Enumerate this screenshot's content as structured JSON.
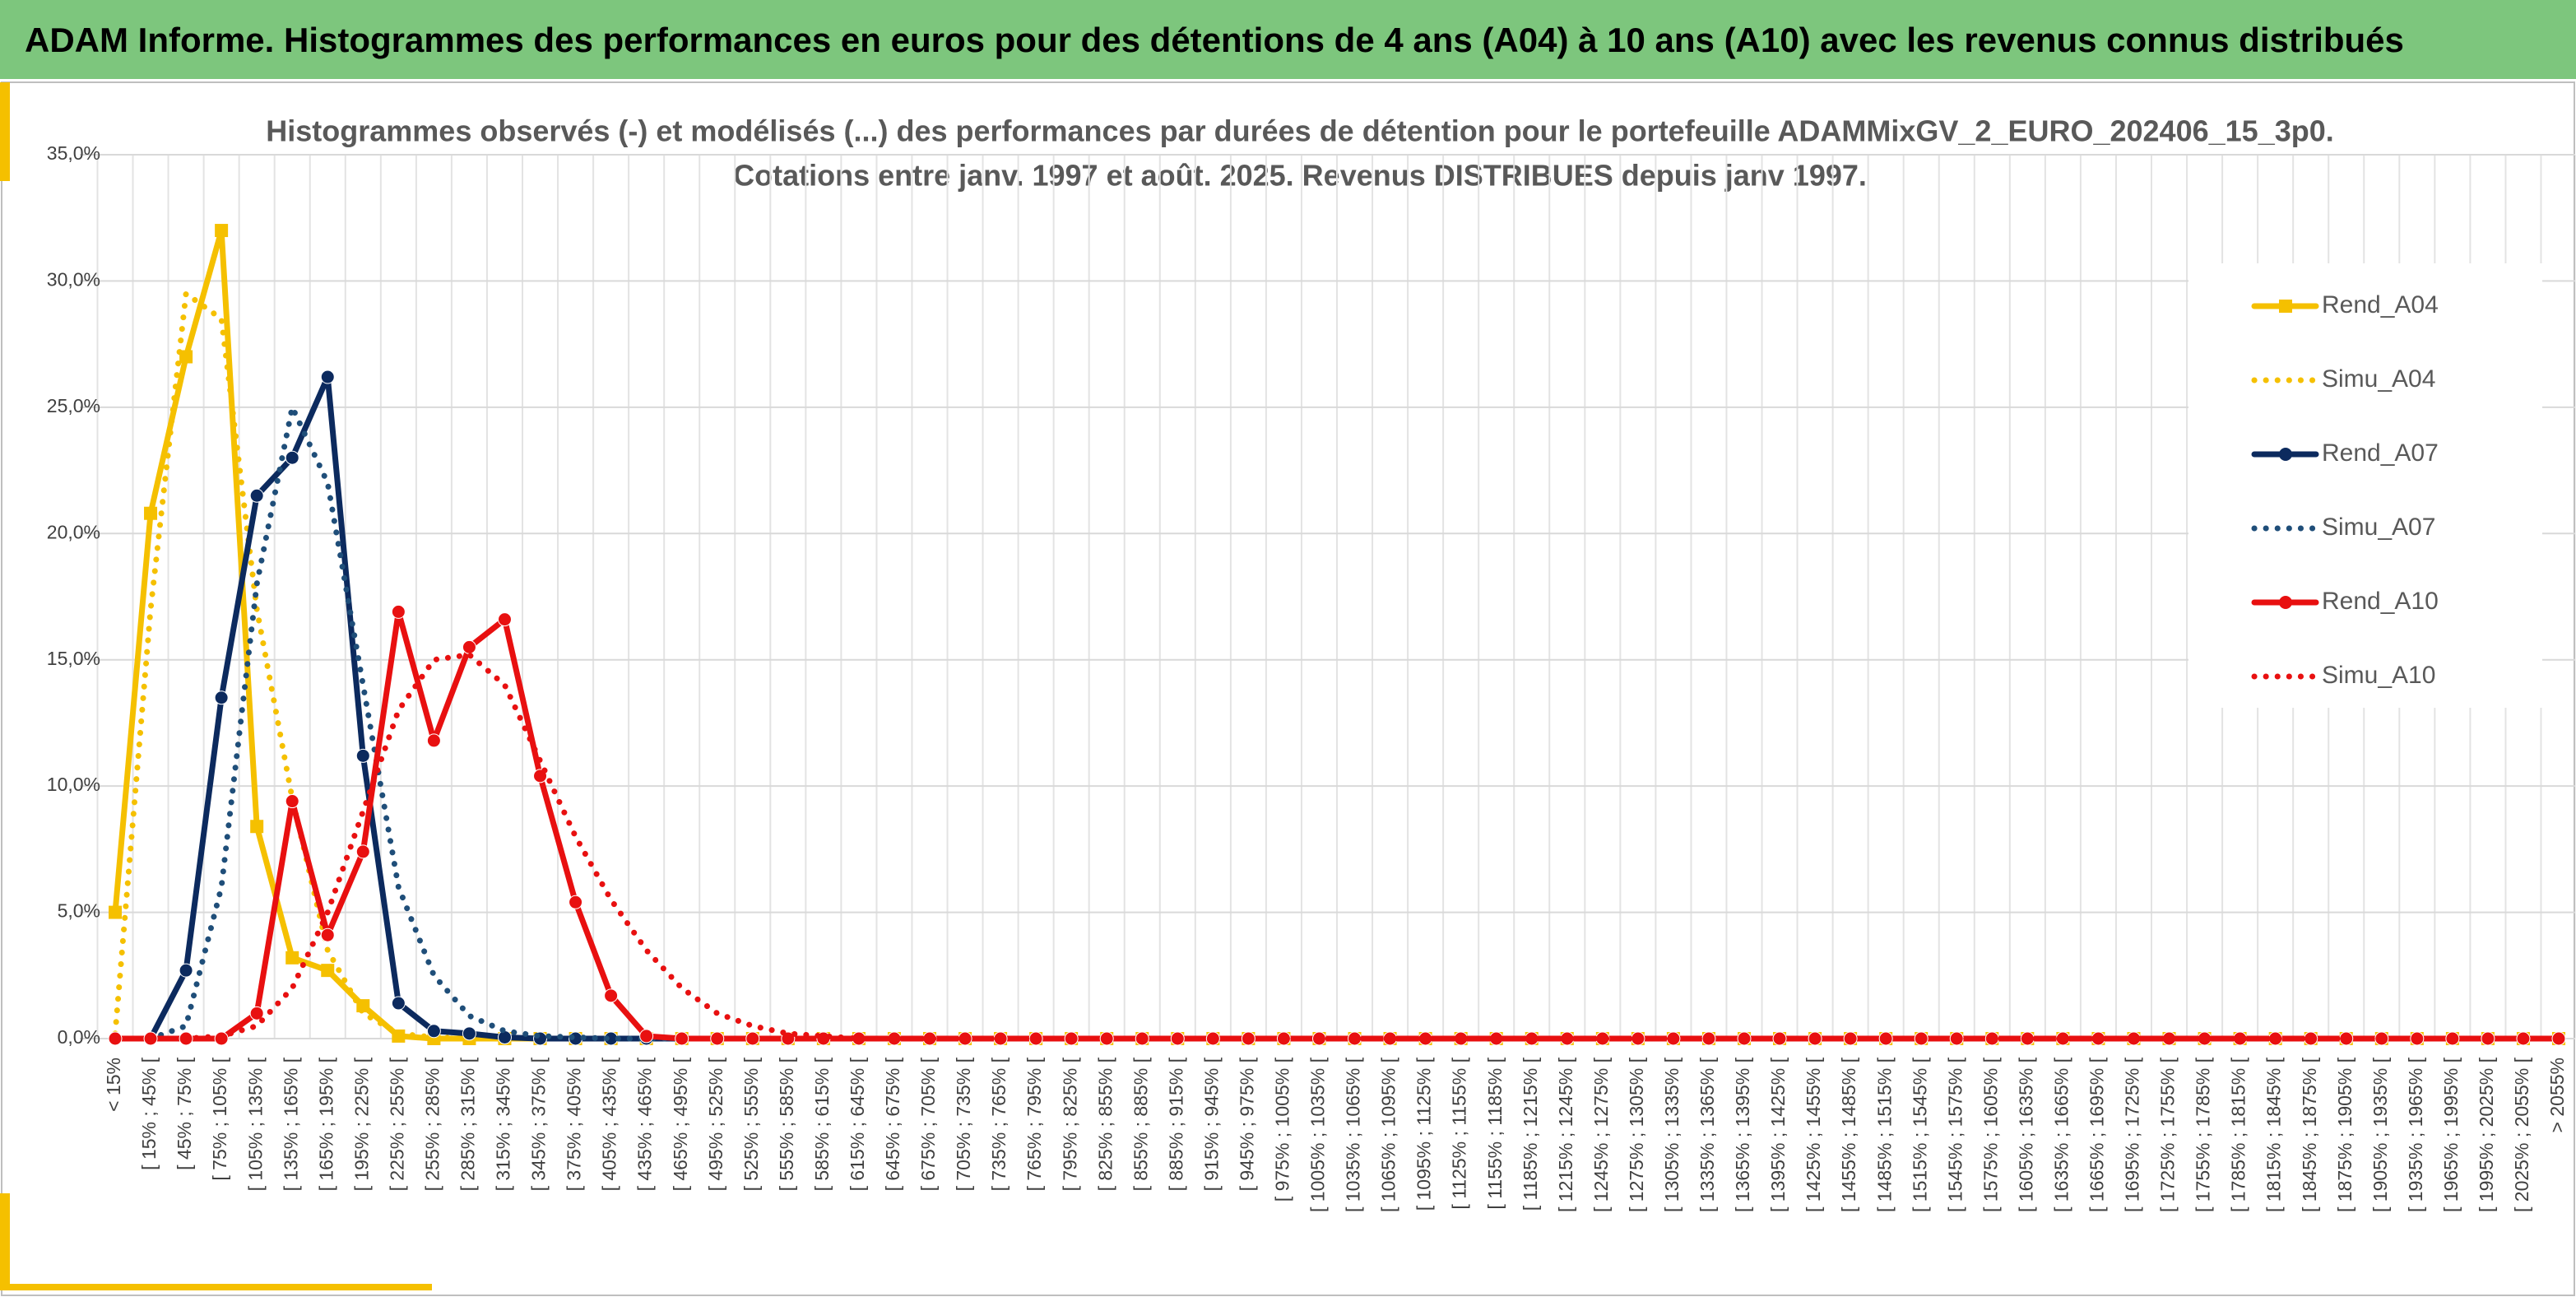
{
  "header": {
    "title": "ADAM Informe. Histogrammes des performances en euros pour des détentions de 4 ans (A04) à 10 ans (A10) avec les revenus connus distribués"
  },
  "chart_data": {
    "type": "line",
    "title": "Histogrammes observés (-) et modélisés (...) des performances par durées de détention pour le portefeuille ADAMMixGV_2_EURO_202406_15_3p0.",
    "subtitle": "Cotations entre janv. 1997 et août. 2025. Revenus DISTRIBUES depuis janv 1997.",
    "categories": [
      "< 15%",
      "[ 15% ; 45% [",
      "[ 45% ; 75% [",
      "[ 75% ; 105% [",
      "[ 105% ; 135% [",
      "[ 135% ; 165% [",
      "[ 165% ; 195% [",
      "[ 195% ; 225% [",
      "[ 225% ; 255% [",
      "[ 255% ; 285% [",
      "[ 285% ; 315% [",
      "[ 315% ; 345% [",
      "[ 345% ; 375% [",
      "[ 375% ; 405% [",
      "[ 405% ; 435% [",
      "[ 435% ; 465% [",
      "[ 465% ; 495% [",
      "[ 495% ; 525% [",
      "[ 525% ; 555% [",
      "[ 555% ; 585% [",
      "[ 585% ; 615% [",
      "[ 615% ; 645% [",
      "[ 645% ; 675% [",
      "[ 675% ; 705% [",
      "[ 705% ; 735% [",
      "[ 735% ; 765% [",
      "[ 765% ; 795% [",
      "[ 795% ; 825% [",
      "[ 825% ; 855% [",
      "[ 855% ; 885% [",
      "[ 885% ; 915% [",
      "[ 915% ; 945% [",
      "[ 945% ; 975% [",
      "[ 975% ; 1005% [",
      "[ 1005% ; 1035% [",
      "[ 1035% ; 1065% [",
      "[ 1065% ; 1095% [",
      "[ 1095% ; 1125% [",
      "[ 1125% ; 1155% [",
      "[ 1155% ; 1185% [",
      "[ 1185% ; 1215% [",
      "[ 1215% ; 1245% [",
      "[ 1245% ; 1275% [",
      "[ 1275% ; 1305% [",
      "[ 1305% ; 1335% [",
      "[ 1335% ; 1365% [",
      "[ 1365% ; 1395% [",
      "[ 1395% ; 1425% [",
      "[ 1425% ; 1455% [",
      "[ 1455% ; 1485% [",
      "[ 1485% ; 1515% [",
      "[ 1515% ; 1545% [",
      "[ 1545% ; 1575% [",
      "[ 1575% ; 1605% [",
      "[ 1605% ; 1635% [",
      "[ 1635% ; 1665% [",
      "[ 1665% ; 1695% [",
      "[ 1695% ; 1725% [",
      "[ 1725% ; 1755% [",
      "[ 1755% ; 1785% [",
      "[ 1785% ; 1815% [",
      "[ 1815% ; 1845% [",
      "[ 1845% ; 1875% [",
      "[ 1875% ; 1905% [",
      "[ 1905% ; 1935% [",
      "[ 1935% ; 1965% [",
      "[ 1965% ; 1995% [",
      "[ 1995% ; 2025% [",
      "[ 2025% ; 2055% [",
      "> 2055%"
    ],
    "series": [
      {
        "name": "Rend_A04",
        "color": "#f5c000",
        "style": "solid",
        "marker": "square",
        "values": [
          5.0,
          20.8,
          27.0,
          32.0,
          8.4,
          3.2,
          2.7,
          1.3,
          0.1,
          0,
          0,
          0,
          0,
          0,
          0,
          0,
          0,
          0,
          0,
          0,
          0,
          0,
          0,
          0,
          0,
          0,
          0,
          0,
          0,
          0,
          0,
          0,
          0,
          0,
          0,
          0,
          0,
          0,
          0,
          0,
          0,
          0,
          0,
          0,
          0,
          0,
          0,
          0,
          0,
          0,
          0,
          0,
          0,
          0,
          0,
          0,
          0,
          0,
          0,
          0,
          0,
          0,
          0,
          0,
          0,
          0,
          0,
          0,
          0,
          0
        ]
      },
      {
        "name": "Simu_A04",
        "color": "#f5c000",
        "style": "dotted",
        "values": [
          0.2,
          17,
          29.5,
          28.5,
          17,
          9.5,
          3.5,
          1.0,
          0.2,
          0.05,
          0,
          0,
          0,
          0,
          0,
          0,
          0,
          0,
          0,
          0,
          0,
          0,
          0,
          0,
          0,
          0,
          0,
          0,
          0,
          0,
          0,
          0,
          0,
          0,
          0,
          0,
          0,
          0,
          0,
          0,
          0,
          0,
          0,
          0,
          0,
          0,
          0,
          0,
          0,
          0,
          0,
          0,
          0,
          0,
          0,
          0,
          0,
          0,
          0,
          0,
          0,
          0,
          0,
          0,
          0,
          0,
          0,
          0,
          0,
          0
        ]
      },
      {
        "name": "Rend_A07",
        "color": "#0c2a5e",
        "style": "solid",
        "marker": "circle",
        "values": [
          0,
          0,
          2.7,
          13.5,
          21.5,
          23.0,
          26.2,
          11.2,
          1.4,
          0.3,
          0.2,
          0.05,
          0,
          0,
          0,
          0,
          0,
          0,
          0,
          0,
          0,
          0,
          0,
          0,
          0,
          0,
          0,
          0,
          0,
          0,
          0,
          0,
          0,
          0,
          0,
          0,
          0,
          0,
          0,
          0,
          0,
          0,
          0,
          0,
          0,
          0,
          0,
          0,
          0,
          0,
          0,
          0,
          0,
          0,
          0,
          0,
          0,
          0,
          0,
          0,
          0,
          0,
          0,
          0,
          0,
          0,
          0,
          0,
          0,
          0
        ]
      },
      {
        "name": "Simu_A07",
        "color": "#1f4e79",
        "style": "dotted",
        "values": [
          0,
          0,
          0.5,
          6,
          18,
          25,
          22,
          14,
          6,
          2.5,
          0.9,
          0.3,
          0.1,
          0.05,
          0,
          0,
          0,
          0,
          0,
          0,
          0,
          0,
          0,
          0,
          0,
          0,
          0,
          0,
          0,
          0,
          0,
          0,
          0,
          0,
          0,
          0,
          0,
          0,
          0,
          0,
          0,
          0,
          0,
          0,
          0,
          0,
          0,
          0,
          0,
          0,
          0,
          0,
          0,
          0,
          0,
          0,
          0,
          0,
          0,
          0,
          0,
          0,
          0,
          0,
          0,
          0,
          0,
          0,
          0,
          0
        ]
      },
      {
        "name": "Rend_A10",
        "color": "#e81010",
        "style": "solid",
        "marker": "circle",
        "values": [
          0,
          0,
          0,
          0,
          1.0,
          9.4,
          4.1,
          7.4,
          16.9,
          11.8,
          15.5,
          16.6,
          10.4,
          5.4,
          1.7,
          0.1,
          0,
          0,
          0,
          0,
          0,
          0,
          0,
          0,
          0,
          0,
          0,
          0,
          0,
          0,
          0,
          0,
          0,
          0,
          0,
          0,
          0,
          0,
          0,
          0,
          0,
          0,
          0,
          0,
          0,
          0,
          0,
          0,
          0,
          0,
          0,
          0,
          0,
          0,
          0,
          0,
          0,
          0,
          0,
          0,
          0,
          0,
          0,
          0,
          0,
          0,
          0,
          0,
          0,
          0
        ]
      },
      {
        "name": "Simu_A10",
        "color": "#e81010",
        "style": "dotted",
        "values": [
          0,
          0,
          0,
          0.1,
          0.5,
          2,
          5,
          9,
          13,
          15,
          15.2,
          14,
          11,
          8,
          5.5,
          3.5,
          2,
          1,
          0.5,
          0.2,
          0.1,
          0,
          0,
          0,
          0,
          0,
          0,
          0,
          0,
          0,
          0,
          0,
          0,
          0,
          0,
          0,
          0,
          0,
          0,
          0,
          0,
          0,
          0,
          0,
          0,
          0,
          0,
          0,
          0,
          0,
          0,
          0,
          0,
          0,
          0,
          0,
          0,
          0,
          0,
          0,
          0,
          0,
          0,
          0,
          0,
          0,
          0,
          0,
          0,
          0
        ]
      }
    ],
    "ylim": [
      0,
      35
    ],
    "yticks": [
      {
        "value": 0,
        "label": "0,0%"
      },
      {
        "value": 5,
        "label": "5,0%"
      },
      {
        "value": 10,
        "label": "10,0%"
      },
      {
        "value": 15,
        "label": "15,0%"
      },
      {
        "value": 20,
        "label": "20,0%"
      },
      {
        "value": 25,
        "label": "25,0%"
      },
      {
        "value": 30,
        "label": "30,0%"
      },
      {
        "value": 35,
        "label": "35,0%"
      }
    ],
    "grid": true,
    "legend": "right"
  }
}
